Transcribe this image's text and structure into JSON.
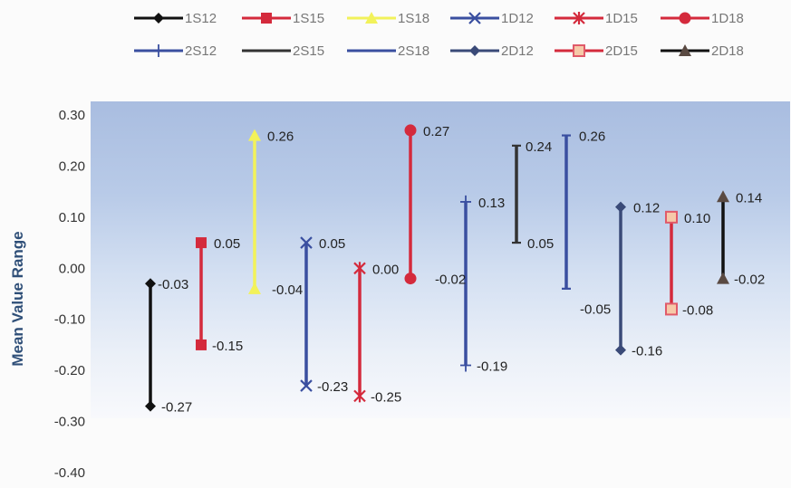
{
  "chart_data": {
    "type": "range",
    "ylabel": "Mean Value Range",
    "ylim": [
      -0.4,
      0.3
    ],
    "y_ticks": [
      "0.30",
      "0.20",
      "0.10",
      "0.00",
      "-0.10",
      "-0.20",
      "-0.30",
      "-0.40"
    ],
    "legend_position": "top",
    "series": [
      {
        "name": "1S12",
        "low": -0.27,
        "high": -0.03,
        "low_label": "-0.27",
        "high_label": "-0.03",
        "color": "#111111",
        "line_color": "#111111",
        "high_marker": "diamond",
        "low_marker": "diamond"
      },
      {
        "name": "1S15",
        "low": -0.15,
        "high": 0.05,
        "low_label": "-0.15",
        "high_label": "0.05",
        "color": "#d42a3c",
        "line_color": "#d42a3c",
        "high_marker": "square",
        "low_marker": "square"
      },
      {
        "name": "1S18",
        "low": -0.04,
        "high": 0.26,
        "low_label": "",
        "high_label": "0.26",
        "color": "#f2f25a",
        "line_color": "#f2f25a",
        "high_marker": "triangle",
        "low_marker": "triangle"
      },
      {
        "name": "1D12",
        "low": -0.23,
        "high": 0.05,
        "low_label": "-0.23",
        "high_label": "0.05",
        "color": "#3a4fa0",
        "line_color": "#3a4fa0",
        "high_marker": "x",
        "low_marker": "x"
      },
      {
        "name": "1D15",
        "low": -0.25,
        "high": 0.0,
        "low_label": "-0.25",
        "high_label": "0.00",
        "color": "#d42a3c",
        "line_color": "#d42a3c",
        "high_marker": "star",
        "low_marker": "star"
      },
      {
        "name": "1D18",
        "low": -0.02,
        "high": 0.27,
        "low_label": "",
        "high_label": "0.27",
        "color": "#d42a3c",
        "line_color": "#d42a3c",
        "high_marker": "circle",
        "low_marker": "circle"
      },
      {
        "name": "2S12",
        "low": -0.19,
        "high": 0.13,
        "low_label": "-0.19",
        "high_label": "0.13",
        "color": "#3a4fa0",
        "line_color": "#3a4fa0",
        "high_marker": "plus",
        "low_marker": "plus"
      },
      {
        "name": "2S15",
        "low": 0.05,
        "high": 0.24,
        "low_label": "0.05",
        "high_label": "0.24",
        "color": "#333333",
        "line_color": "#333333",
        "high_marker": "dash",
        "low_marker": "dash"
      },
      {
        "name": "2S18",
        "low": -0.04,
        "high": 0.26,
        "low_label": "",
        "high_label": "0.26",
        "color": "#3a4fa0",
        "line_color": "#3a4fa0",
        "high_marker": "dash",
        "low_marker": "dash"
      },
      {
        "name": "2D12",
        "low": -0.16,
        "high": 0.12,
        "low_label": "-0.16",
        "high_label": "0.12",
        "color": "#3a4a78",
        "line_color": "#3a4a78",
        "high_marker": "diamond",
        "low_marker": "diamond"
      },
      {
        "name": "2D15",
        "low": -0.08,
        "high": 0.1,
        "low_label": "-0.08",
        "high_label": "0.10",
        "color": "#e05a6a",
        "line_color": "#d42a3c",
        "high_marker": "hsquare",
        "low_marker": "hsquare"
      },
      {
        "name": "2D18",
        "low": -0.02,
        "high": 0.14,
        "low_label": "-0.02",
        "high_label": "0.14",
        "color": "#5a4a42",
        "line_color": "#111111",
        "high_marker": "triangle",
        "low_marker": "triangle"
      }
    ],
    "shared_labels": [
      {
        "text": "-0.04",
        "value": -0.04
      },
      {
        "text": "-0.02",
        "value": -0.02
      },
      {
        "text": "-0.05",
        "value": -0.05
      }
    ]
  }
}
